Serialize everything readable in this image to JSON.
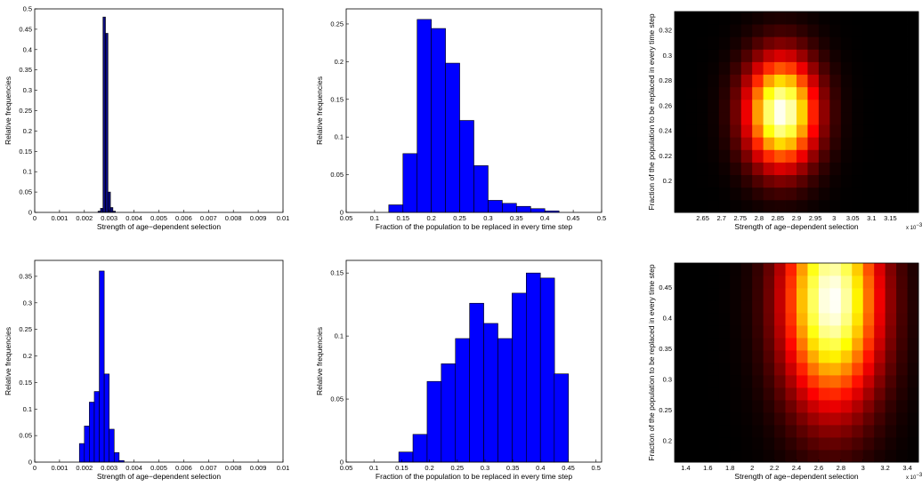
{
  "chart_data": [
    {
      "type": "bar",
      "xlabel": "Strength of age−dependent selection",
      "ylabel": "Relative frequencies",
      "xlim": [
        0,
        0.01
      ],
      "ylim": [
        0,
        0.5
      ],
      "xticks": [
        "0",
        "0.001",
        "0.002",
        "0.003",
        "0.004",
        "0.005",
        "0.006",
        "0.007",
        "0.008",
        "0.009",
        "0.01"
      ],
      "yticks": [
        "0",
        "0.05",
        "0.1",
        "0.15",
        "0.2",
        "0.25",
        "0.3",
        "0.35",
        "0.4",
        "0.45",
        "0.5"
      ],
      "bin_width": 0.0001,
      "bins": [
        {
          "x": 0.0026,
          "value": 0.003
        },
        {
          "x": 0.0027,
          "value": 0.01
        },
        {
          "x": 0.0028,
          "value": 0.48
        },
        {
          "x": 0.0029,
          "value": 0.44
        },
        {
          "x": 0.003,
          "value": 0.05
        },
        {
          "x": 0.0031,
          "value": 0.012
        },
        {
          "x": 0.0032,
          "value": 0.003
        }
      ]
    },
    {
      "type": "bar",
      "xlabel": "Fraction of the population to be replaced in every time step",
      "ylabel": "Relative frequencies",
      "xlim": [
        0.05,
        0.5
      ],
      "ylim": [
        0,
        0.27
      ],
      "xticks": [
        "0.05",
        "0.1",
        "0.15",
        "0.2",
        "0.25",
        "0.3",
        "0.35",
        "0.4",
        "0.45",
        "0.5"
      ],
      "yticks": [
        "0",
        "0.05",
        "0.1",
        "0.15",
        "0.2",
        "0.25"
      ],
      "bin_width": 0.025,
      "bins": [
        {
          "x": 0.1375,
          "value": 0.01
        },
        {
          "x": 0.1625,
          "value": 0.078
        },
        {
          "x": 0.1875,
          "value": 0.256
        },
        {
          "x": 0.2125,
          "value": 0.244
        },
        {
          "x": 0.2375,
          "value": 0.198
        },
        {
          "x": 0.2625,
          "value": 0.122
        },
        {
          "x": 0.2875,
          "value": 0.062
        },
        {
          "x": 0.3125,
          "value": 0.016
        },
        {
          "x": 0.3375,
          "value": 0.012
        },
        {
          "x": 0.3625,
          "value": 0.008
        },
        {
          "x": 0.3875,
          "value": 0.005
        },
        {
          "x": 0.4125,
          "value": 0.002
        }
      ]
    },
    {
      "type": "heatmap",
      "xlabel": "Strength of age−dependent selection",
      "ylabel": "Fraction of the population to be replaced in every time step",
      "x_exponent": "x 10",
      "x_exponent_power": "−3",
      "xlim": [
        2.575,
        3.225
      ],
      "ylim": [
        0.175,
        0.335
      ],
      "xticks": [
        "2.65",
        "2.7",
        "2.75",
        "2.8",
        "2.85",
        "2.9",
        "2.95",
        "3",
        "3.05",
        "3.1",
        "3.15"
      ],
      "yticks": [
        "0.2",
        "0.22",
        "0.24",
        "0.26",
        "0.28",
        "0.3",
        "0.32"
      ],
      "peak": {
        "x": 2.86,
        "y": 0.255
      },
      "spread": {
        "x": 0.065,
        "y": 0.03
      }
    },
    {
      "type": "bar",
      "xlabel": "Strength of age−dependent selection",
      "ylabel": "Relative frequencies",
      "xlim": [
        0,
        0.01
      ],
      "ylim": [
        0,
        0.38
      ],
      "xticks": [
        "0",
        "0.001",
        "0.002",
        "0.003",
        "0.004",
        "0.005",
        "0.006",
        "0.007",
        "0.008",
        "0.009",
        "0.01"
      ],
      "yticks": [
        "0",
        "0.05",
        "0.1",
        "0.15",
        "0.2",
        "0.25",
        "0.3",
        "0.35"
      ],
      "bin_width": 0.0002,
      "bins": [
        {
          "x": 0.0019,
          "value": 0.035
        },
        {
          "x": 0.0021,
          "value": 0.068
        },
        {
          "x": 0.0023,
          "value": 0.113
        },
        {
          "x": 0.0025,
          "value": 0.133
        },
        {
          "x": 0.0027,
          "value": 0.36
        },
        {
          "x": 0.0029,
          "value": 0.166
        },
        {
          "x": 0.0031,
          "value": 0.062
        },
        {
          "x": 0.0033,
          "value": 0.018
        },
        {
          "x": 0.0035,
          "value": 0.003
        }
      ]
    },
    {
      "type": "bar",
      "xlabel": "Fraction of the population to be replaced in every time step",
      "ylabel": "Relative frequencies",
      "xlim": [
        0.05,
        0.51
      ],
      "ylim": [
        0,
        0.16
      ],
      "xticks": [
        "0.05",
        "0.1",
        "0.15",
        "0.2",
        "0.25",
        "0.3",
        "0.35",
        "0.4",
        "0.45",
        "0.5"
      ],
      "yticks": [
        "0",
        "0.05",
        "0.1",
        "0.15"
      ],
      "bin_width": 0.0255,
      "bins": [
        {
          "x": 0.1575,
          "value": 0.008
        },
        {
          "x": 0.183,
          "value": 0.022
        },
        {
          "x": 0.2085,
          "value": 0.064
        },
        {
          "x": 0.234,
          "value": 0.078
        },
        {
          "x": 0.2595,
          "value": 0.098
        },
        {
          "x": 0.285,
          "value": 0.126
        },
        {
          "x": 0.3105,
          "value": 0.11
        },
        {
          "x": 0.336,
          "value": 0.098
        },
        {
          "x": 0.3615,
          "value": 0.134
        },
        {
          "x": 0.387,
          "value": 0.15
        },
        {
          "x": 0.4125,
          "value": 0.146
        },
        {
          "x": 0.4375,
          "value": 0.07
        }
      ]
    },
    {
      "type": "heatmap",
      "xlabel": "Strength of age−dependent selection",
      "ylabel": "Fraction of the population to be replaced in every time step",
      "x_exponent": "x 10",
      "x_exponent_power": "−3",
      "xlim": [
        1.3,
        3.5
      ],
      "ylim": [
        0.165,
        0.49
      ],
      "xticks": [
        "1.4",
        "1.6",
        "1.8",
        "2",
        "2.2",
        "2.4",
        "2.6",
        "2.8",
        "3",
        "3.2",
        "3.4"
      ],
      "yticks": [
        "0.2",
        "0.25",
        "0.3",
        "0.35",
        "0.4",
        "0.45"
      ],
      "peak": {
        "x": 2.72,
        "y": 0.43
      },
      "spread": {
        "x": 0.3,
        "y": 0.12
      }
    }
  ]
}
